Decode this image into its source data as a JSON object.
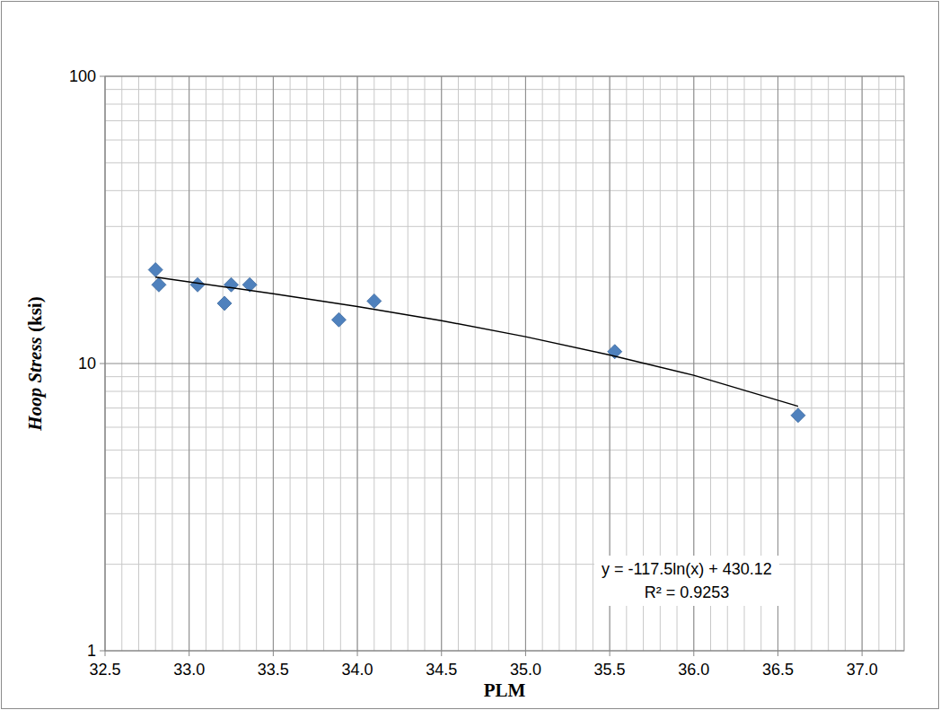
{
  "chart_data": {
    "type": "scatter",
    "x_label": "PLM",
    "y_label": "Hoop Stress (ksi)",
    "log": "y",
    "grid": true,
    "xlim": [
      32.5,
      37.25
    ],
    "ylim": [
      1,
      100
    ],
    "xticks": [
      32.5,
      {
        "value": 33,
        "label": "33.0"
      },
      33.5,
      {
        "value": 34,
        "label": "34.0"
      },
      34.5,
      {
        "value": 35,
        "label": "35.0"
      },
      35.5,
      {
        "value": 36,
        "label": "36.0"
      },
      36.5,
      {
        "value": 37,
        "label": "37.0"
      }
    ],
    "yticks": [
      1,
      10,
      100
    ],
    "series": [
      {
        "type": "scatter",
        "color": "#4f81bd",
        "marker": "diamond",
        "x": [
          32.8,
          32.82,
          33.05,
          33.21,
          33.25,
          33.36,
          33.89,
          34.1,
          35.53,
          36.62
        ],
        "values": [
          21.2,
          18.8,
          18.8,
          16.2,
          18.8,
          18.8,
          14.2,
          16.5,
          11.0,
          6.6
        ]
      },
      {
        "type": "line",
        "color": "#000000",
        "line_style": "solid",
        "x": [
          32.8,
          33.5,
          34.0,
          34.5,
          35.0,
          35.5,
          36.0,
          36.62
        ],
        "values": [
          20.0,
          17.5,
          15.8,
          14.1,
          12.4,
          10.7,
          9.1,
          7.1
        ]
      }
    ],
    "annotations": [
      "y = -117.5ln(x) + 430.12",
      "R² = 0.9253"
    ]
  }
}
